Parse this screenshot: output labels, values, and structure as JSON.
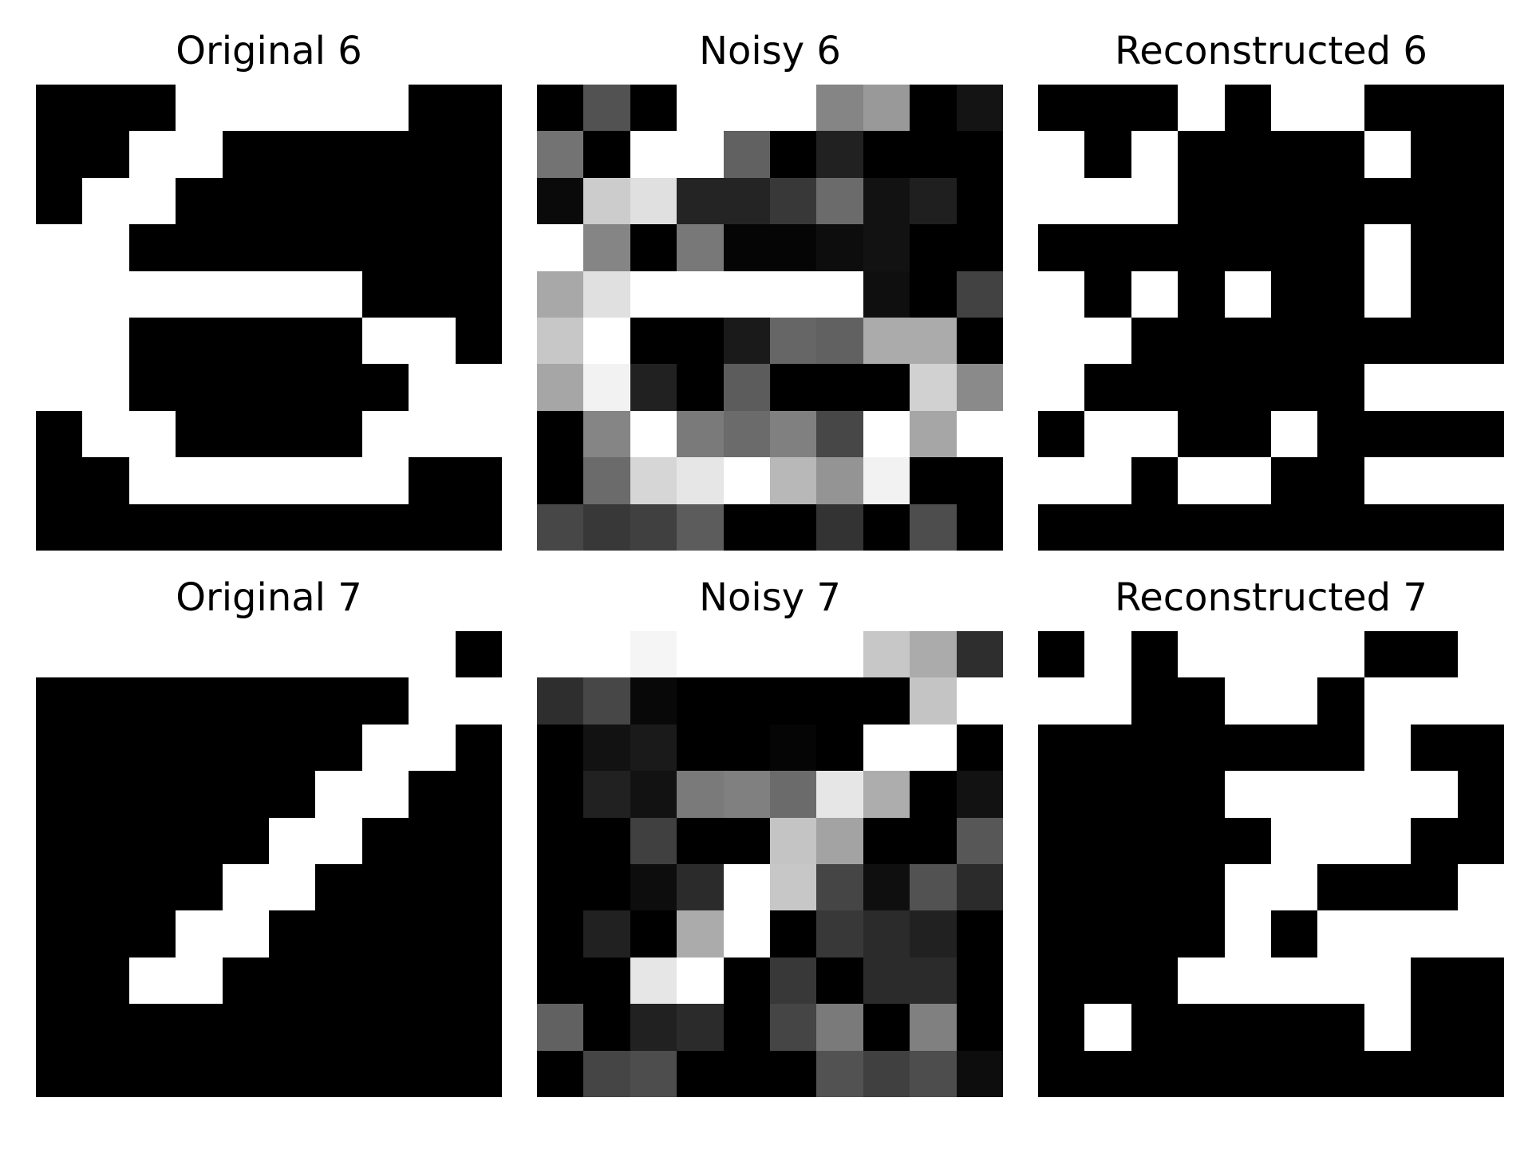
{
  "figure": {
    "panels": [
      {
        "title": "Original 6"
      },
      {
        "title": "Noisy 6"
      },
      {
        "title": "Reconstructed 6"
      },
      {
        "title": "Original 7"
      },
      {
        "title": "Noisy 7"
      },
      {
        "title": "Reconstructed 7"
      }
    ]
  },
  "chart_data": [
    {
      "type": "heatmap",
      "title": "Original 6",
      "colormap": "gray",
      "value_range": [
        0,
        1
      ],
      "grid": false,
      "values": [
        [
          0,
          0,
          0,
          1,
          1,
          1,
          1,
          1,
          0,
          0
        ],
        [
          0,
          0,
          1,
          1,
          0,
          0,
          0,
          0,
          0,
          0
        ],
        [
          0,
          1,
          1,
          0,
          0,
          0,
          0,
          0,
          0,
          0
        ],
        [
          1,
          1,
          0,
          0,
          0,
          0,
          0,
          0,
          0,
          0
        ],
        [
          1,
          1,
          1,
          1,
          1,
          1,
          1,
          0,
          0,
          0
        ],
        [
          1,
          1,
          0,
          0,
          0,
          0,
          0,
          1,
          1,
          0
        ],
        [
          1,
          1,
          0,
          0,
          0,
          0,
          0,
          0,
          1,
          1
        ],
        [
          0,
          1,
          1,
          0,
          0,
          0,
          0,
          1,
          1,
          1
        ],
        [
          0,
          0,
          1,
          1,
          1,
          1,
          1,
          1,
          0,
          0
        ],
        [
          0,
          0,
          0,
          0,
          0,
          0,
          0,
          0,
          0,
          0
        ]
      ]
    },
    {
      "type": "heatmap",
      "title": "Noisy 6",
      "colormap": "gray",
      "value_range": [
        0,
        1
      ],
      "grid": false,
      "values": [
        [
          0.0,
          0.32,
          0.0,
          1.0,
          1.0,
          1.0,
          0.52,
          0.6,
          0.0,
          0.08
        ],
        [
          0.45,
          0.0,
          1.0,
          1.0,
          0.38,
          0.0,
          0.13,
          0.0,
          0.0,
          0.0
        ],
        [
          0.04,
          0.8,
          0.88,
          0.14,
          0.14,
          0.22,
          0.42,
          0.07,
          0.12,
          0.0
        ],
        [
          1.0,
          0.52,
          0.0,
          0.47,
          0.02,
          0.02,
          0.05,
          0.07,
          0.0,
          0.0
        ],
        [
          0.66,
          0.88,
          1.0,
          1.0,
          1.0,
          1.0,
          1.0,
          0.06,
          0.0,
          0.26
        ],
        [
          0.78,
          1.0,
          0.0,
          0.0,
          0.1,
          0.4,
          0.38,
          0.67,
          0.67,
          0.0
        ],
        [
          0.65,
          0.95,
          0.13,
          0.0,
          0.36,
          0.0,
          0.0,
          0.0,
          0.82,
          0.54
        ],
        [
          0.0,
          0.52,
          1.0,
          0.48,
          0.42,
          0.5,
          0.28,
          1.0,
          0.65,
          1.0
        ],
        [
          0.0,
          0.42,
          0.84,
          0.9,
          1.0,
          0.72,
          0.58,
          0.95,
          0.0,
          0.0
        ],
        [
          0.28,
          0.22,
          0.25,
          0.36,
          0.0,
          0.0,
          0.2,
          0.0,
          0.3,
          0.0
        ]
      ]
    },
    {
      "type": "heatmap",
      "title": "Reconstructed 6",
      "colormap": "gray",
      "value_range": [
        0,
        1
      ],
      "grid": false,
      "values": [
        [
          0,
          0,
          0,
          1,
          0,
          1,
          1,
          0,
          0,
          0
        ],
        [
          1,
          0,
          1,
          0,
          0,
          0,
          0,
          1,
          0,
          0
        ],
        [
          1,
          1,
          1,
          0,
          0,
          0,
          0,
          0,
          0,
          0
        ],
        [
          0,
          0,
          0,
          0,
          0,
          0,
          0,
          1,
          0,
          0
        ],
        [
          1,
          0,
          1,
          0,
          1,
          0,
          0,
          1,
          0,
          0
        ],
        [
          1,
          1,
          0,
          0,
          0,
          0,
          0,
          0,
          0,
          0
        ],
        [
          1,
          0,
          0,
          0,
          0,
          0,
          0,
          1,
          1,
          1
        ],
        [
          0,
          1,
          1,
          0,
          0,
          1,
          0,
          0,
          0,
          0
        ],
        [
          1,
          1,
          0,
          1,
          1,
          0,
          0,
          1,
          1,
          1
        ],
        [
          0,
          0,
          0,
          0,
          0,
          0,
          0,
          0,
          0,
          0
        ]
      ]
    },
    {
      "type": "heatmap",
      "title": "Original 7",
      "colormap": "gray",
      "value_range": [
        0,
        1
      ],
      "grid": false,
      "values": [
        [
          1,
          1,
          1,
          1,
          1,
          1,
          1,
          1,
          1,
          0
        ],
        [
          0,
          0,
          0,
          0,
          0,
          0,
          0,
          0,
          1,
          1
        ],
        [
          0,
          0,
          0,
          0,
          0,
          0,
          0,
          1,
          1,
          0
        ],
        [
          0,
          0,
          0,
          0,
          0,
          0,
          1,
          1,
          0,
          0
        ],
        [
          0,
          0,
          0,
          0,
          0,
          1,
          1,
          0,
          0,
          0
        ],
        [
          0,
          0,
          0,
          0,
          1,
          1,
          0,
          0,
          0,
          0
        ],
        [
          0,
          0,
          0,
          1,
          1,
          0,
          0,
          0,
          0,
          0
        ],
        [
          0,
          0,
          1,
          1,
          0,
          0,
          0,
          0,
          0,
          0
        ],
        [
          0,
          0,
          0,
          0,
          0,
          0,
          0,
          0,
          0,
          0
        ],
        [
          0,
          0,
          0,
          0,
          0,
          0,
          0,
          0,
          0,
          0
        ]
      ]
    },
    {
      "type": "heatmap",
      "title": "Noisy 7",
      "colormap": "gray",
      "value_range": [
        0,
        1
      ],
      "grid": false,
      "values": [
        [
          1.0,
          1.0,
          0.96,
          1.0,
          1.0,
          1.0,
          1.0,
          0.78,
          0.67,
          0.18
        ],
        [
          0.18,
          0.28,
          0.03,
          0.0,
          0.0,
          0.0,
          0.0,
          0.0,
          0.77,
          1.0
        ],
        [
          0.0,
          0.07,
          0.1,
          0.0,
          0.0,
          0.02,
          0.0,
          1.0,
          1.0,
          0.0
        ],
        [
          0.0,
          0.13,
          0.07,
          0.48,
          0.5,
          0.42,
          0.9,
          0.68,
          0.0,
          0.07
        ],
        [
          0.0,
          0.0,
          0.25,
          0.0,
          0.0,
          0.77,
          0.64,
          0.0,
          0.0,
          0.34
        ],
        [
          0.0,
          0.0,
          0.05,
          0.17,
          1.0,
          0.78,
          0.27,
          0.06,
          0.32,
          0.17
        ],
        [
          0.0,
          0.13,
          0.0,
          0.67,
          1.0,
          0.0,
          0.22,
          0.17,
          0.13,
          0.0
        ],
        [
          0.0,
          0.0,
          0.9,
          1.0,
          0.0,
          0.22,
          0.0,
          0.17,
          0.17,
          0.0
        ],
        [
          0.38,
          0.0,
          0.13,
          0.17,
          0.0,
          0.27,
          0.48,
          0.0,
          0.5,
          0.0
        ],
        [
          0.0,
          0.27,
          0.3,
          0.0,
          0.0,
          0.0,
          0.32,
          0.25,
          0.3,
          0.05
        ]
      ]
    },
    {
      "type": "heatmap",
      "title": "Reconstructed 7",
      "colormap": "gray",
      "value_range": [
        0,
        1
      ],
      "grid": false,
      "values": [
        [
          0,
          1,
          0,
          1,
          1,
          1,
          1,
          0,
          0,
          1
        ],
        [
          1,
          1,
          0,
          0,
          1,
          1,
          0,
          1,
          1,
          1
        ],
        [
          0,
          0,
          0,
          0,
          0,
          0,
          0,
          1,
          0,
          0
        ],
        [
          0,
          0,
          0,
          0,
          1,
          1,
          1,
          1,
          1,
          0
        ],
        [
          0,
          0,
          0,
          0,
          0,
          1,
          1,
          1,
          0,
          0
        ],
        [
          0,
          0,
          0,
          0,
          1,
          1,
          0,
          0,
          0,
          1
        ],
        [
          0,
          0,
          0,
          0,
          1,
          0,
          1,
          1,
          1,
          1
        ],
        [
          0,
          0,
          0,
          1,
          1,
          1,
          1,
          1,
          0,
          0
        ],
        [
          0,
          1,
          0,
          0,
          0,
          0,
          0,
          1,
          0,
          0
        ],
        [
          0,
          0,
          0,
          0,
          0,
          0,
          0,
          0,
          0,
          0
        ]
      ]
    }
  ]
}
